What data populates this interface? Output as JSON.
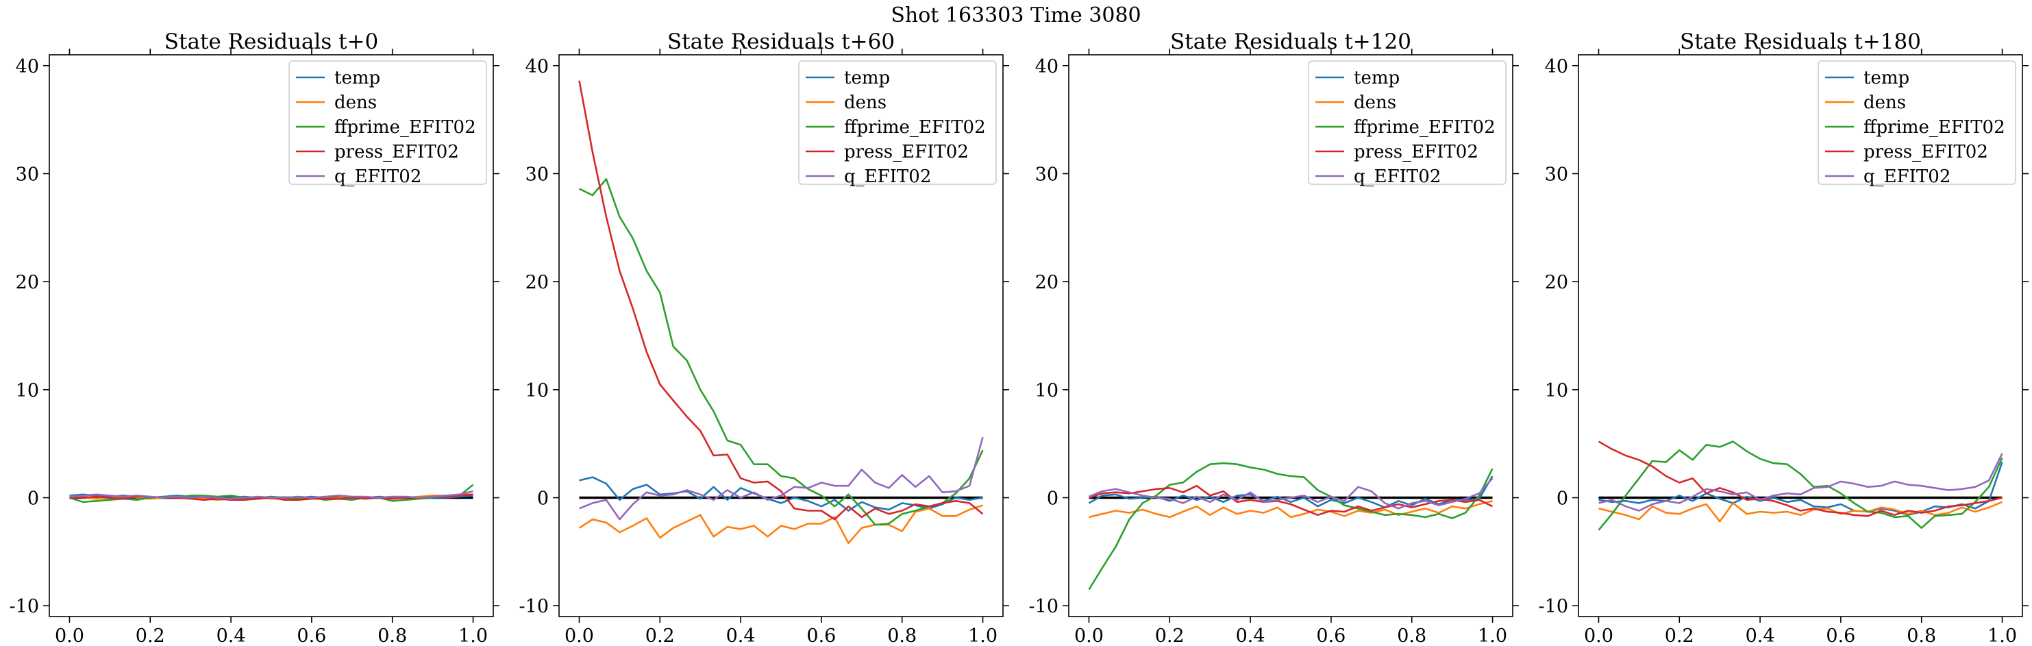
{
  "figure": {
    "suptitle": "Shot 163303   Time 3080"
  },
  "style": {
    "colors": {
      "temp": "#1f77b4",
      "dens": "#ff7f0e",
      "ffprime_EFIT02": "#2ca02c",
      "press_EFIT02": "#d62728",
      "q_EFIT02": "#9467bd",
      "zero_line": "#000000"
    },
    "grid": false,
    "legend_position": "upper right"
  },
  "chart_data": [
    {
      "type": "line",
      "title": "State Residuals t+0",
      "xlabel": "",
      "ylabel": "",
      "xlim": [
        -0.05,
        1.05
      ],
      "ylim": [
        -11,
        41
      ],
      "xticks": [
        "0.0",
        "0.2",
        "0.4",
        "0.6",
        "0.8",
        "1.0"
      ],
      "yticks": [
        "-10",
        "0",
        "10",
        "20",
        "30",
        "40"
      ],
      "x": [
        0,
        0.033,
        0.067,
        0.1,
        0.133,
        0.167,
        0.2,
        0.233,
        0.267,
        0.3,
        0.333,
        0.367,
        0.4,
        0.433,
        0.467,
        0.5,
        0.533,
        0.567,
        0.6,
        0.633,
        0.667,
        0.7,
        0.733,
        0.767,
        0.8,
        0.833,
        0.867,
        0.9,
        0.933,
        0.967,
        1.0
      ],
      "series": [
        {
          "name": "temp",
          "values": [
            0.2,
            0.3,
            0.2,
            0.1,
            0.2,
            0.1,
            0.0,
            0.1,
            0.2,
            0.1,
            0.0,
            -0.1,
            0.0,
            0.1,
            0.0,
            0.0,
            -0.1,
            0.0,
            0.1,
            0.0,
            -0.1,
            0.0,
            0.0,
            0.1,
            0.0,
            0.0,
            0.1,
            0.0,
            0.0,
            0.1,
            0.2
          ]
        },
        {
          "name": "dens",
          "values": [
            0.1,
            0.0,
            -0.1,
            0.0,
            0.1,
            0.0,
            -0.1,
            0.0,
            0.1,
            0.0,
            -0.1,
            -0.2,
            -0.1,
            0.0,
            0.0,
            -0.1,
            -0.1,
            0.0,
            0.0,
            -0.1,
            0.0,
            0.1,
            0.0,
            0.0,
            0.1,
            0.0,
            0.1,
            0.2,
            0.2,
            0.3,
            0.3
          ]
        },
        {
          "name": "ffprime_EFIT02",
          "values": [
            0.0,
            -0.4,
            -0.3,
            -0.2,
            -0.1,
            -0.2,
            0.0,
            0.1,
            0.0,
            0.2,
            0.2,
            0.1,
            0.2,
            0.0,
            0.0,
            0.1,
            0.0,
            -0.1,
            0.0,
            -0.2,
            -0.1,
            -0.2,
            0.0,
            0.0,
            -0.3,
            -0.2,
            -0.1,
            0.0,
            0.2,
            0.2,
            1.2
          ]
        },
        {
          "name": "press_EFIT02",
          "values": [
            0.0,
            0.0,
            0.1,
            0.0,
            -0.1,
            0.1,
            0.1,
            0.0,
            0.0,
            -0.1,
            -0.2,
            -0.1,
            -0.2,
            -0.2,
            -0.1,
            0.0,
            -0.2,
            -0.2,
            -0.1,
            -0.1,
            -0.1,
            0.0,
            -0.1,
            0.0,
            -0.1,
            0.0,
            0.0,
            0.1,
            0.1,
            0.2,
            0.3
          ]
        },
        {
          "name": "q_EFIT02",
          "values": [
            0.1,
            0.2,
            0.3,
            0.2,
            0.1,
            0.2,
            0.1,
            0.0,
            0.1,
            0.0,
            0.1,
            0.0,
            -0.1,
            0.0,
            0.1,
            0.0,
            0.0,
            0.1,
            0.0,
            0.1,
            0.2,
            0.1,
            0.1,
            0.0,
            0.1,
            0.1,
            0.0,
            0.1,
            0.2,
            0.3,
            0.6
          ]
        }
      ]
    },
    {
      "type": "line",
      "title": "State Residuals t+60",
      "xlabel": "",
      "ylabel": "",
      "xlim": [
        -0.05,
        1.05
      ],
      "ylim": [
        -11,
        41
      ],
      "xticks": [
        "0.0",
        "0.2",
        "0.4",
        "0.6",
        "0.8",
        "1.0"
      ],
      "yticks": [
        "-10",
        "0",
        "10",
        "20",
        "30",
        "40"
      ],
      "x": [
        0,
        0.033,
        0.067,
        0.1,
        0.133,
        0.167,
        0.2,
        0.233,
        0.267,
        0.3,
        0.333,
        0.367,
        0.4,
        0.433,
        0.467,
        0.5,
        0.533,
        0.567,
        0.6,
        0.633,
        0.667,
        0.7,
        0.733,
        0.767,
        0.8,
        0.833,
        0.867,
        0.9,
        0.933,
        0.967,
        1.0
      ],
      "series": [
        {
          "name": "temp",
          "values": [
            1.6,
            1.9,
            1.3,
            -0.2,
            0.8,
            1.2,
            0.3,
            0.4,
            0.6,
            -0.1,
            1.0,
            -0.2,
            0.9,
            0.4,
            -0.1,
            -0.5,
            0.0,
            -0.3,
            -0.8,
            -0.2,
            -1.2,
            -0.4,
            -0.9,
            -1.1,
            -0.5,
            -0.7,
            -1.0,
            -0.6,
            0.0,
            -0.2,
            0.0
          ]
        },
        {
          "name": "dens",
          "values": [
            -2.8,
            -2.0,
            -2.3,
            -3.2,
            -2.6,
            -1.9,
            -3.7,
            -2.8,
            -2.2,
            -1.6,
            -3.6,
            -2.7,
            -2.9,
            -2.6,
            -3.6,
            -2.6,
            -2.9,
            -2.4,
            -2.4,
            -1.8,
            -4.2,
            -2.8,
            -2.5,
            -2.5,
            -3.1,
            -1.3,
            -1.0,
            -1.7,
            -1.7,
            -1.1,
            -0.7
          ]
        },
        {
          "name": "ffprime_EFIT02",
          "values": [
            28.6,
            28.0,
            29.5,
            26.0,
            24.0,
            21.0,
            19.0,
            14.0,
            12.7,
            10.0,
            8.0,
            5.3,
            4.9,
            3.1,
            3.1,
            2.0,
            1.8,
            0.8,
            0.2,
            -0.8,
            0.3,
            -1.0,
            -2.5,
            -2.4,
            -1.5,
            -1.2,
            -0.8,
            -0.5,
            0.4,
            1.8,
            4.4
          ]
        },
        {
          "name": "press_EFIT02",
          "values": [
            38.6,
            32.0,
            26.0,
            21.0,
            17.5,
            13.5,
            10.5,
            9.0,
            7.5,
            6.2,
            3.9,
            4.0,
            1.8,
            1.4,
            1.5,
            0.6,
            -1.0,
            -1.2,
            -1.2,
            -2.0,
            -0.8,
            -1.8,
            -1.0,
            -1.5,
            -1.2,
            -0.6,
            -0.8,
            -0.5,
            -0.3,
            -0.5,
            -1.5
          ]
        },
        {
          "name": "q_EFIT02",
          "values": [
            -1.0,
            -0.5,
            -0.2,
            -2.0,
            -0.6,
            0.5,
            0.2,
            0.3,
            0.7,
            0.3,
            -0.2,
            0.7,
            0.0,
            0.5,
            -0.2,
            0.2,
            1.0,
            0.9,
            1.4,
            1.1,
            1.1,
            2.6,
            1.4,
            0.9,
            2.1,
            1.0,
            2.0,
            0.5,
            0.6,
            1.1,
            5.6
          ]
        }
      ]
    },
    {
      "type": "line",
      "title": "State Residuals t+120",
      "xlabel": "",
      "ylabel": "",
      "xlim": [
        -0.05,
        1.05
      ],
      "ylim": [
        -11,
        41
      ],
      "xticks": [
        "0.0",
        "0.2",
        "0.4",
        "0.6",
        "0.8",
        "1.0"
      ],
      "yticks": [
        "-10",
        "0",
        "10",
        "20",
        "30",
        "40"
      ],
      "x": [
        0,
        0.033,
        0.067,
        0.1,
        0.133,
        0.167,
        0.2,
        0.233,
        0.267,
        0.3,
        0.333,
        0.367,
        0.4,
        0.433,
        0.467,
        0.5,
        0.533,
        0.567,
        0.6,
        0.633,
        0.667,
        0.7,
        0.733,
        0.767,
        0.8,
        0.833,
        0.867,
        0.9,
        0.933,
        0.967,
        1.0
      ],
      "series": [
        {
          "name": "temp",
          "values": [
            -0.5,
            0.2,
            0.3,
            -0.1,
            0.0,
            0.1,
            -0.3,
            0.2,
            -0.2,
            0.1,
            -0.4,
            0.2,
            0.3,
            -0.3,
            0.1,
            -0.4,
            0.0,
            -0.8,
            -0.2,
            -0.5,
            0.0,
            -0.4,
            -0.9,
            -0.3,
            -0.7,
            -0.1,
            -0.6,
            -0.2,
            -0.2,
            -0.1,
            2.0
          ]
        },
        {
          "name": "dens",
          "values": [
            -1.8,
            -1.5,
            -1.2,
            -1.4,
            -1.1,
            -1.5,
            -1.8,
            -1.3,
            -0.8,
            -1.6,
            -0.9,
            -1.5,
            -1.2,
            -1.4,
            -0.9,
            -1.8,
            -1.5,
            -1.1,
            -1.3,
            -1.7,
            -1.2,
            -1.4,
            -1.1,
            -1.6,
            -1.3,
            -1.0,
            -1.4,
            -0.8,
            -1.0,
            -0.6,
            -0.3
          ]
        },
        {
          "name": "ffprime_EFIT02",
          "values": [
            -8.5,
            -6.5,
            -4.5,
            -2.0,
            -0.5,
            0.2,
            1.2,
            1.4,
            2.4,
            3.1,
            3.2,
            3.1,
            2.8,
            2.6,
            2.2,
            2.0,
            1.9,
            0.7,
            0.1,
            -0.7,
            -1.0,
            -1.3,
            -1.6,
            -1.5,
            -1.6,
            -1.8,
            -1.5,
            -1.9,
            -1.4,
            0.2,
            2.7
          ]
        },
        {
          "name": "press_EFIT02",
          "values": [
            0.0,
            0.4,
            0.5,
            0.4,
            0.6,
            0.8,
            0.9,
            0.5,
            1.1,
            0.2,
            0.6,
            -0.4,
            -0.2,
            -0.4,
            -0.3,
            -0.6,
            -1.1,
            -1.6,
            -1.2,
            -1.3,
            -0.8,
            -1.2,
            -0.9,
            -0.6,
            -0.9,
            -0.6,
            -0.3,
            -0.2,
            -0.4,
            -0.2,
            -0.8
          ]
        },
        {
          "name": "q_EFIT02",
          "values": [
            0.1,
            0.6,
            0.8,
            0.5,
            0.2,
            0.0,
            -0.1,
            -0.5,
            0.1,
            -0.4,
            0.3,
            -0.2,
            0.5,
            -0.4,
            -0.2,
            0.0,
            0.2,
            -0.4,
            0.1,
            -0.3,
            1.0,
            0.6,
            -0.5,
            -1.0,
            -0.5,
            -0.3,
            -0.7,
            -0.4,
            -0.1,
            0.4,
            1.8
          ]
        }
      ]
    },
    {
      "type": "line",
      "title": "State Residuals t+180",
      "xlabel": "",
      "ylabel": "",
      "xlim": [
        -0.05,
        1.05
      ],
      "ylim": [
        -11,
        41
      ],
      "xticks": [
        "0.0",
        "0.2",
        "0.4",
        "0.6",
        "0.8",
        "1.0"
      ],
      "yticks": [
        "-10",
        "0",
        "10",
        "20",
        "30",
        "40"
      ],
      "x": [
        0,
        0.033,
        0.067,
        0.1,
        0.133,
        0.167,
        0.2,
        0.233,
        0.267,
        0.3,
        0.333,
        0.367,
        0.4,
        0.433,
        0.467,
        0.5,
        0.533,
        0.567,
        0.6,
        0.633,
        0.667,
        0.7,
        0.733,
        0.767,
        0.8,
        0.833,
        0.867,
        0.9,
        0.933,
        0.967,
        1.0
      ],
      "series": [
        {
          "name": "temp",
          "values": [
            -0.2,
            -0.4,
            -0.3,
            -0.5,
            -0.2,
            -0.3,
            0.2,
            -0.3,
            0.4,
            -0.1,
            -0.5,
            0.1,
            -0.3,
            0.0,
            -0.4,
            -0.2,
            -0.8,
            -0.9,
            -0.6,
            -1.2,
            -1.3,
            -1.0,
            -1.2,
            -1.6,
            -1.3,
            -0.8,
            -0.9,
            -0.6,
            -1.0,
            -0.3,
            3.3
          ]
        },
        {
          "name": "dens",
          "values": [
            -1.0,
            -1.3,
            -1.6,
            -2.0,
            -0.8,
            -1.4,
            -1.5,
            -1.0,
            -0.6,
            -2.2,
            -0.5,
            -1.5,
            -1.3,
            -1.4,
            -1.3,
            -1.6,
            -1.1,
            -1.0,
            -1.5,
            -1.2,
            -1.3,
            -0.9,
            -1.1,
            -1.5,
            -1.2,
            -1.6,
            -1.4,
            -0.9,
            -1.3,
            -0.9,
            -0.4
          ]
        },
        {
          "name": "ffprime_EFIT02",
          "values": [
            -3.0,
            -1.5,
            0.2,
            1.8,
            3.4,
            3.3,
            4.4,
            3.5,
            4.9,
            4.7,
            5.2,
            4.3,
            3.6,
            3.2,
            3.1,
            2.2,
            1.0,
            1.1,
            0.4,
            -0.5,
            -1.3,
            -1.4,
            -1.8,
            -1.7,
            -2.8,
            -1.7,
            -1.6,
            -1.5,
            -0.4,
            1.0,
            3.7
          ]
        },
        {
          "name": "press_EFIT02",
          "values": [
            5.2,
            4.5,
            3.9,
            3.5,
            2.9,
            2.0,
            1.4,
            1.8,
            0.4,
            0.9,
            0.5,
            -0.2,
            -0.1,
            -0.3,
            -0.7,
            -1.2,
            -1.0,
            -1.3,
            -1.4,
            -1.6,
            -1.7,
            -1.2,
            -1.6,
            -1.2,
            -1.4,
            -1.2,
            -0.8,
            -0.7,
            -0.5,
            -0.3,
            0.0
          ]
        },
        {
          "name": "q_EFIT02",
          "values": [
            -0.5,
            -0.2,
            -0.8,
            -1.2,
            -0.6,
            -0.3,
            -0.5,
            0.1,
            0.8,
            0.6,
            0.3,
            0.5,
            -0.2,
            0.2,
            0.4,
            0.3,
            0.9,
            1.0,
            1.5,
            1.3,
            1.0,
            1.1,
            1.5,
            1.2,
            1.1,
            0.9,
            0.7,
            0.8,
            1.0,
            1.6,
            4.1
          ]
        }
      ]
    }
  ]
}
